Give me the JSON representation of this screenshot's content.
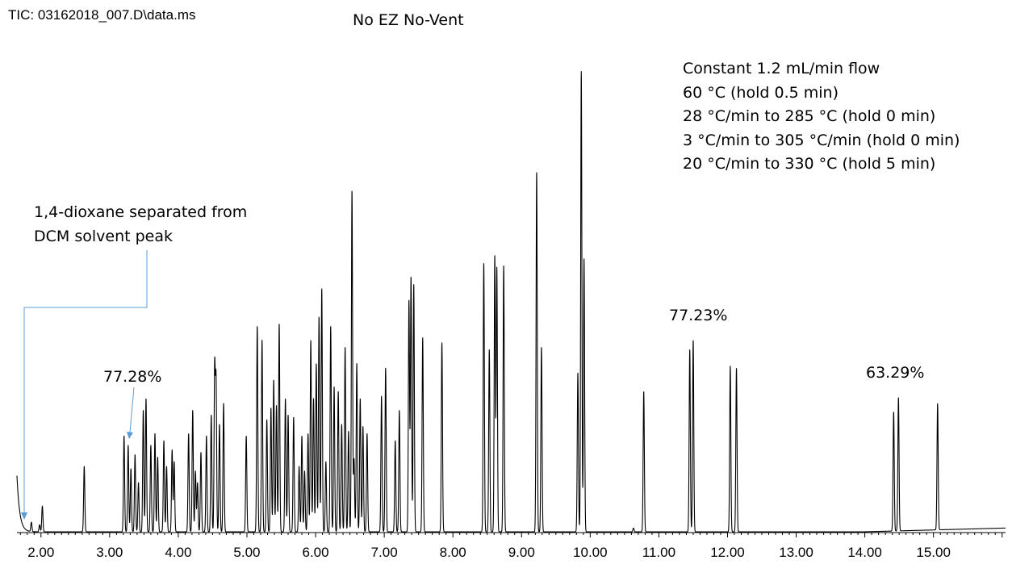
{
  "header": {
    "tic_label": "TIC: 03162018_007.D\\data.ms",
    "title": "No EZ No-Vent"
  },
  "method_conditions": [
    "Constant 1.2 mL/min flow",
    "60 °C (hold 0.5 min)",
    "28 °C/min to 285 °C (hold 0 min)",
    "3 °C/min to 305 °C/min (hold 0 min)",
    "20 °C/min to 330 °C (hold 5 min)"
  ],
  "annotations": {
    "dioxane_note": [
      "1,4-dioxane separated from",
      "DCM solvent peak"
    ],
    "resolution_labels": [
      "77.28%",
      "77.23%",
      "63.29%"
    ]
  },
  "colors": {
    "trace": "#000000",
    "annotation_arrow": "#5b9bd5",
    "axis": "#000000"
  },
  "chart_data": {
    "type": "line",
    "title": "No EZ No-Vent",
    "xlabel": "",
    "ylabel": "",
    "xlim": [
      1.65,
      16.05
    ],
    "ylim": [
      0,
      100
    ],
    "x_ticks": [
      "2.00",
      "3.00",
      "4.00",
      "5.00",
      "6.00",
      "7.00",
      "8.00",
      "9.00",
      "10.00",
      "11.00",
      "12.00",
      "13.00",
      "14.00",
      "15.00"
    ],
    "grid": false,
    "peaks": [
      [
        1.86,
        2.0
      ],
      [
        1.98,
        1.5
      ],
      [
        2.02,
        5.5
      ],
      [
        2.63,
        14.0
      ],
      [
        3.21,
        20.5
      ],
      [
        3.27,
        18.5
      ],
      [
        3.31,
        13.5
      ],
      [
        3.37,
        16.5
      ],
      [
        3.42,
        10.5
      ],
      [
        3.49,
        26.0
      ],
      [
        3.53,
        28.5
      ],
      [
        3.6,
        18.5
      ],
      [
        3.66,
        21.0
      ],
      [
        3.7,
        16.0
      ],
      [
        3.79,
        19.5
      ],
      [
        3.83,
        14.0
      ],
      [
        3.91,
        17.5
      ],
      [
        3.94,
        15.0
      ],
      [
        4.15,
        21.0
      ],
      [
        4.21,
        26.0
      ],
      [
        4.25,
        13.0
      ],
      [
        4.28,
        10.5
      ],
      [
        4.33,
        17.0
      ],
      [
        4.41,
        20.5
      ],
      [
        4.48,
        25.0
      ],
      [
        4.53,
        35.0
      ],
      [
        4.55,
        32.0
      ],
      [
        4.6,
        23.0
      ],
      [
        4.66,
        27.5
      ],
      [
        4.99,
        20.5
      ],
      [
        5.15,
        44.0
      ],
      [
        5.22,
        41.0
      ],
      [
        5.29,
        24.0
      ],
      [
        5.35,
        26.5
      ],
      [
        5.39,
        32.5
      ],
      [
        5.43,
        27.0
      ],
      [
        5.47,
        44.5
      ],
      [
        5.56,
        28.5
      ],
      [
        5.6,
        25.0
      ],
      [
        5.68,
        24.5
      ],
      [
        5.76,
        14.0
      ],
      [
        5.8,
        20.5
      ],
      [
        5.84,
        13.0
      ],
      [
        5.89,
        21.0
      ],
      [
        5.93,
        41.0
      ],
      [
        5.97,
        28.5
      ],
      [
        6.01,
        36.0
      ],
      [
        6.05,
        46.0
      ],
      [
        6.09,
        52.0
      ],
      [
        6.15,
        15.0
      ],
      [
        6.22,
        44.0
      ],
      [
        6.27,
        31.0
      ],
      [
        6.33,
        30.0
      ],
      [
        6.38,
        23.0
      ],
      [
        6.43,
        39.5
      ],
      [
        6.48,
        21.5
      ],
      [
        6.53,
        73.0
      ],
      [
        6.56,
        15.5
      ],
      [
        6.6,
        36.0
      ],
      [
        6.65,
        28.5
      ],
      [
        6.69,
        22.5
      ],
      [
        6.75,
        21.0
      ],
      [
        6.96,
        29.0
      ],
      [
        7.02,
        35.0
      ],
      [
        7.16,
        19.5
      ],
      [
        7.22,
        26.0
      ],
      [
        7.36,
        49.5
      ],
      [
        7.39,
        54.5
      ],
      [
        7.43,
        53.0
      ],
      [
        7.56,
        41.5
      ],
      [
        7.84,
        40.5
      ],
      [
        8.45,
        57.5
      ],
      [
        8.53,
        39.0
      ],
      [
        8.61,
        59.0
      ],
      [
        8.64,
        56.5
      ],
      [
        8.74,
        57.0
      ],
      [
        9.22,
        77.0
      ],
      [
        9.29,
        39.5
      ],
      [
        9.82,
        34.0
      ],
      [
        9.87,
        98.5
      ],
      [
        9.91,
        58.5
      ],
      [
        10.63,
        0.8
      ],
      [
        10.78,
        30.0
      ],
      [
        11.45,
        39.0
      ],
      [
        11.5,
        41.0
      ],
      [
        12.04,
        35.5
      ],
      [
        12.13,
        35.0
      ],
      [
        14.42,
        25.5
      ],
      [
        14.49,
        28.5
      ],
      [
        15.06,
        27.0
      ]
    ],
    "solvent_front": [
      [
        1.65,
        11.5
      ],
      [
        1.7,
        4.5
      ],
      [
        1.76,
        1.3
      ],
      [
        1.85,
        0.2
      ]
    ],
    "baseline_end": 0.8
  }
}
